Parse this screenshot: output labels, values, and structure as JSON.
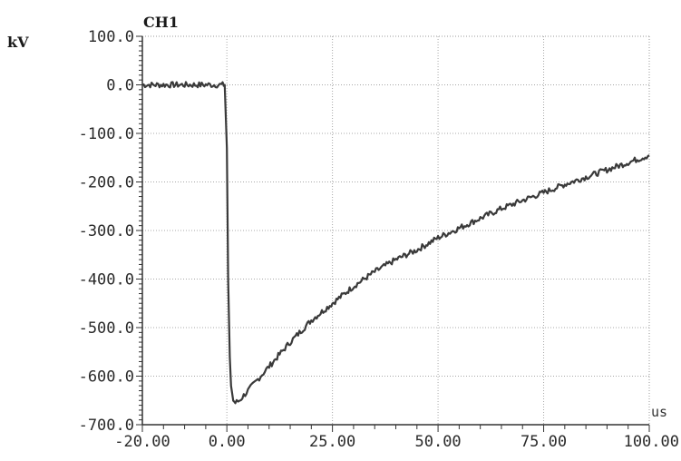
{
  "chart_data": {
    "type": "line",
    "title": "CH1",
    "ylabel": "kV",
    "xlabel": "us",
    "xlim": [
      -20,
      100
    ],
    "ylim": [
      -700,
      100
    ],
    "grid": true,
    "x_ticks": [
      -20,
      0,
      25,
      50,
      75,
      100
    ],
    "x_tick_labels": [
      "-20.00",
      "0.00",
      "25.00",
      "50.00",
      "75.00",
      "100.00"
    ],
    "y_ticks": [
      100,
      0,
      -100,
      -200,
      -300,
      -400,
      -500,
      -600,
      -700
    ],
    "y_tick_labels": [
      "100.0",
      "0.0",
      "-100.0",
      "-200.0",
      "-300.0",
      "-400.0",
      "-500.0",
      "-600.0",
      "-700.0"
    ],
    "series": [
      {
        "color": "#3a3a3a",
        "x": [
          -20,
          -15,
          -10,
          -5,
          -1,
          -0.5,
          0,
          0.3,
          0.7,
          1.0,
          1.5,
          2,
          3,
          5,
          8,
          10,
          15,
          20,
          25,
          30,
          35,
          40,
          45,
          50,
          55,
          60,
          65,
          70,
          75,
          80,
          85,
          90,
          95,
          100
        ],
        "y": [
          0,
          0,
          0,
          0,
          0,
          0,
          -130,
          -400,
          -560,
          -620,
          -650,
          -655,
          -650,
          -630,
          -600,
          -580,
          -530,
          -485,
          -450,
          -415,
          -385,
          -360,
          -340,
          -315,
          -295,
          -275,
          -255,
          -238,
          -222,
          -205,
          -190,
          -175,
          -160,
          -145
        ]
      }
    ]
  }
}
